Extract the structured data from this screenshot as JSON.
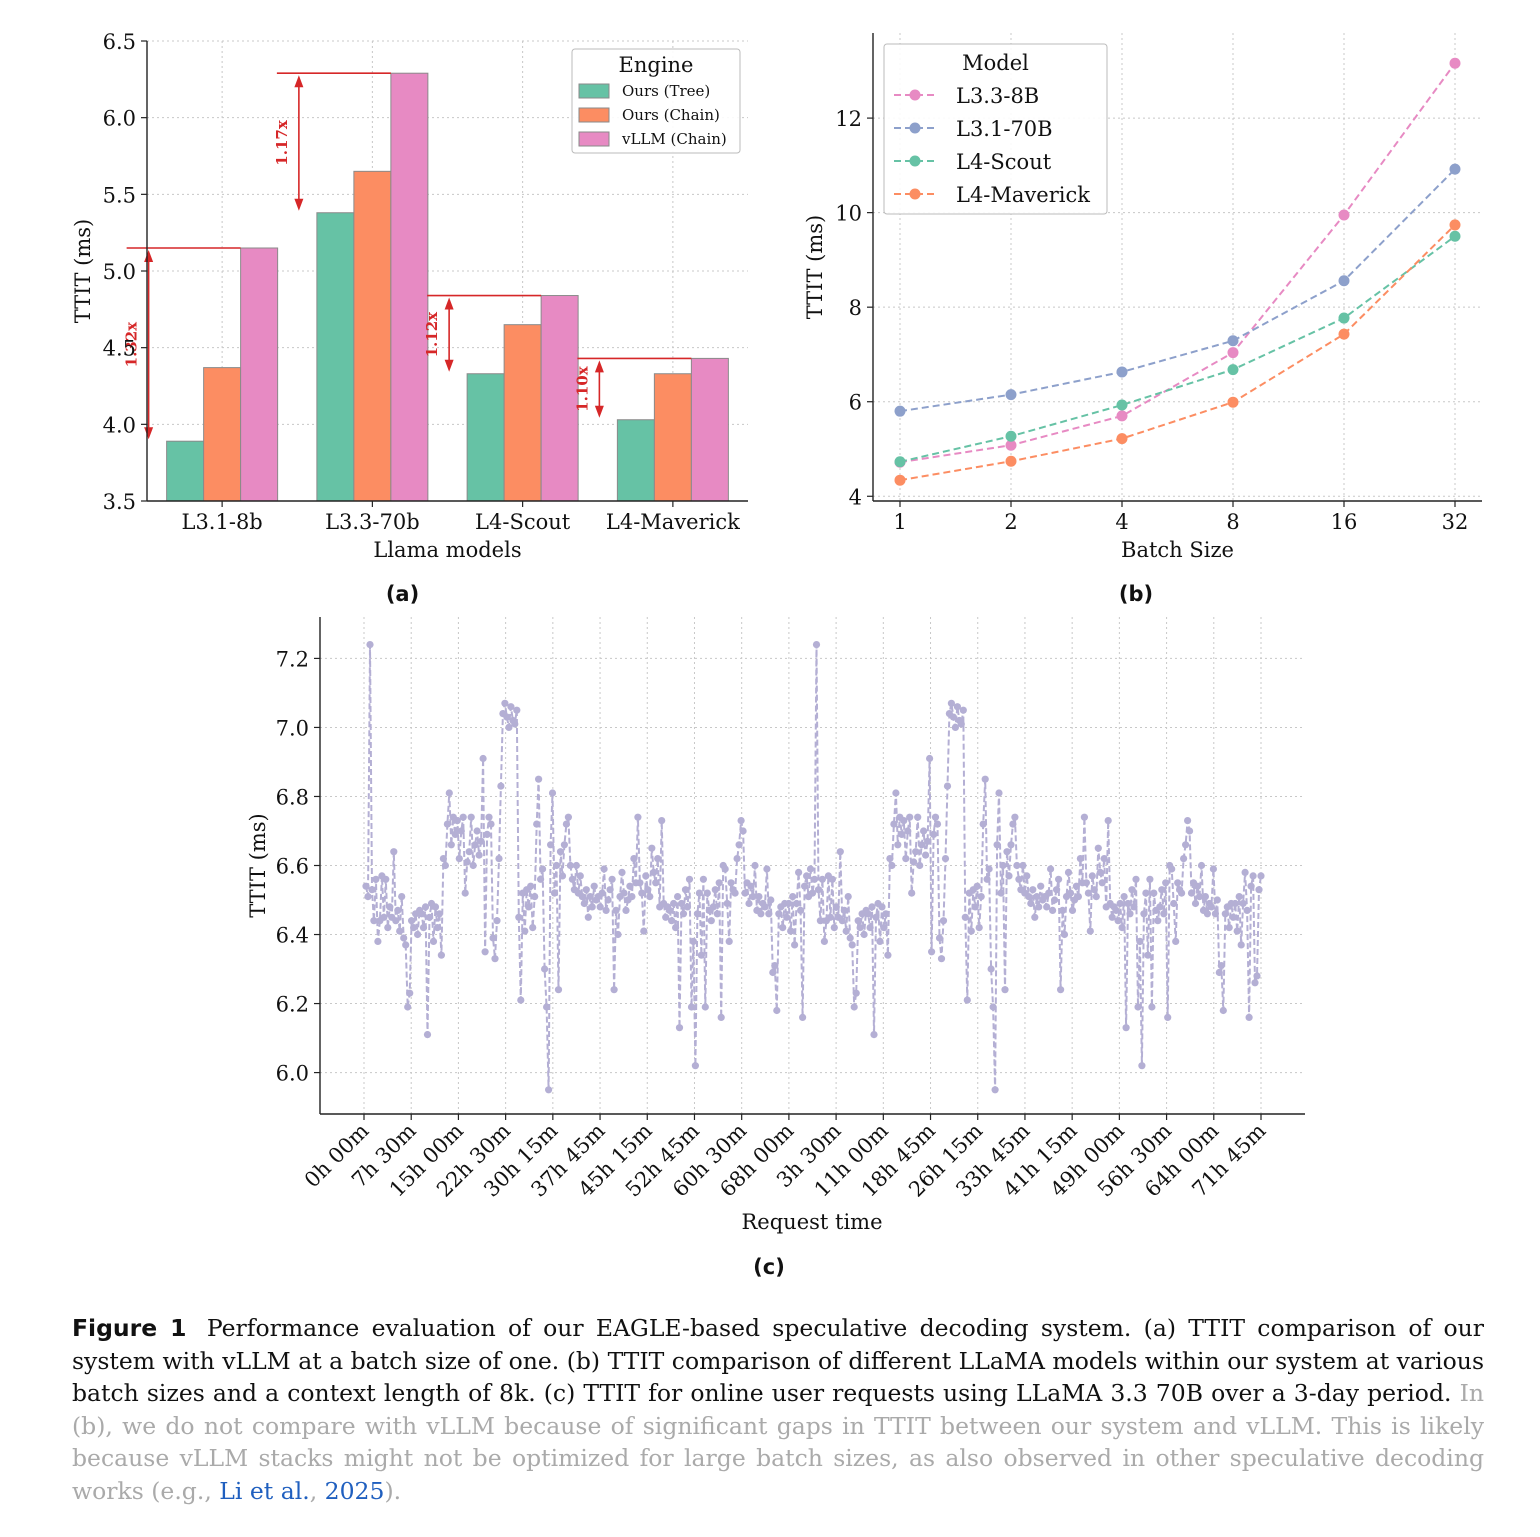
{
  "chart_data": [
    {
      "id": "a",
      "type": "bar",
      "sublabel": "(a)",
      "title": "",
      "xlabel": "Llama models",
      "ylabel": "TTIT (ms)",
      "ylim": [
        3.5,
        6.5
      ],
      "yticks": [
        "3.5",
        "4.0",
        "4.5",
        "5.0",
        "5.5",
        "6.0",
        "6.5"
      ],
      "grid": true,
      "categories": [
        "L3.1-8b",
        "L3.3-70b",
        "L4-Scout",
        "L4-Maverick"
      ],
      "legend": {
        "title": "Engine",
        "position": "top-right"
      },
      "series": [
        {
          "name": "Ours (Tree)",
          "color": "#66c2a5",
          "values": [
            3.89,
            5.38,
            4.33,
            4.03
          ]
        },
        {
          "name": "Ours (Chain)",
          "color": "#fc8d62",
          "values": [
            4.37,
            5.65,
            4.65,
            4.33
          ]
        },
        {
          "name": "vLLM (Chain)",
          "color": "#e78ac3",
          "values": [
            5.15,
            6.29,
            4.84,
            4.43
          ]
        }
      ],
      "annotations": [
        {
          "category": "L3.1-8b",
          "label": "1.32x"
        },
        {
          "category": "L3.3-70b",
          "label": "1.17x"
        },
        {
          "category": "L4-Scout",
          "label": "1.12x"
        },
        {
          "category": "L4-Maverick",
          "label": "1.10x"
        }
      ],
      "annotation_color": "#d62728"
    },
    {
      "id": "b",
      "type": "line",
      "sublabel": "(b)",
      "title": "",
      "xlabel": "Batch Size",
      "ylabel": "TTIT (ms)",
      "ylim": [
        3.9,
        13.8
      ],
      "yticks": [
        "4",
        "6",
        "8",
        "10",
        "12"
      ],
      "grid": true,
      "x": [
        "1",
        "2",
        "4",
        "8",
        "16",
        "32"
      ],
      "legend": {
        "title": "Model",
        "position": "top-left"
      },
      "series": [
        {
          "name": "L3.3-8B",
          "color": "#e78ac3",
          "values": [
            4.72,
            5.08,
            5.7,
            7.04,
            9.95,
            13.16
          ]
        },
        {
          "name": "L3.1-70B",
          "color": "#8da0cb",
          "values": [
            5.8,
            6.15,
            6.63,
            7.29,
            8.56,
            10.92
          ]
        },
        {
          "name": "L4-Scout",
          "color": "#66c2a5",
          "values": [
            4.73,
            5.27,
            5.93,
            6.68,
            7.77,
            9.5
          ]
        },
        {
          "name": "L4-Maverick",
          "color": "#fc8d62",
          "values": [
            4.34,
            4.74,
            5.22,
            5.99,
            7.43,
            9.74
          ]
        }
      ]
    },
    {
      "id": "c",
      "type": "line",
      "sublabel": "(c)",
      "title": "",
      "xlabel": "Request time",
      "ylabel": "TTIT (ms)",
      "ylim": [
        5.88,
        7.32
      ],
      "yticks": [
        "6.0",
        "6.2",
        "6.4",
        "6.6",
        "6.8",
        "7.0",
        "7.2"
      ],
      "grid": true,
      "xticks": [
        "0h 00m",
        "7h 30m",
        "15h 00m",
        "22h 30m",
        "30h 15m",
        "37h 45m",
        "45h 15m",
        "52h 45m",
        "60h 30m",
        "68h 00m",
        "3h 30m",
        "11h 00m",
        "18h 45m",
        "26h 15m",
        "33h 45m",
        "41h 15m",
        "49h 00m",
        "56h 30m",
        "64h 00m",
        "71h 45m"
      ],
      "series": [
        {
          "name": "",
          "color": "#b4afd4",
          "values": [
            6.54,
            6.51,
            7.24,
            6.53,
            6.44,
            6.56,
            6.38,
            6.44,
            6.57,
            6.45,
            6.56,
            6.42,
            6.48,
            6.45,
            6.64,
            6.44,
            6.47,
            6.41,
            6.51,
            6.39,
            6.37,
            6.19,
            6.23,
            6.44,
            6.42,
            6.46,
            6.4,
            6.47,
            6.46,
            6.42,
            6.48,
            6.11,
            6.45,
            6.49,
            6.38,
            6.48,
            6.42,
            6.46,
            6.34,
            6.62,
            6.6,
            6.72,
            6.81,
            6.66,
            6.74,
            6.69,
            6.73,
            6.62,
            6.7,
            6.74,
            6.52,
            6.61,
            6.64,
            6.74,
            6.6,
            6.66,
            6.7,
            6.63,
            6.67,
            6.91,
            6.35,
            6.69,
            6.74,
            6.72,
            6.39,
            6.33,
            6.44,
            6.62,
            6.83,
            7.04,
            7.07,
            7.03,
            7.0,
            7.06,
            7.02,
            7.01,
            7.05,
            6.45,
            6.21,
            6.52,
            6.41,
            6.53,
            6.48,
            6.54,
            6.42,
            6.51,
            6.72,
            6.85,
            6.56,
            6.59,
            6.3,
            6.19,
            5.95,
            6.66,
            6.81,
            6.52,
            6.6,
            6.24,
            6.64,
            6.57,
            6.66,
            6.72,
            6.74,
            6.6,
            6.56,
            6.53,
            6.6,
            6.52,
            6.57,
            6.51,
            6.49,
            6.53,
            6.45,
            6.51,
            6.48,
            6.54,
            6.5,
            6.51,
            6.48,
            6.52,
            6.59,
            6.47,
            6.5,
            6.53,
            6.56,
            6.24,
            6.47,
            6.4,
            6.51,
            6.58,
            6.52,
            6.47,
            6.5,
            6.54,
            6.51,
            6.62,
            6.55,
            6.74,
            6.55,
            6.52,
            6.41,
            6.57,
            6.53,
            6.51,
            6.65,
            6.58,
            6.55,
            6.62,
            6.48,
            6.73,
            6.49,
            6.45,
            6.48,
            6.47,
            6.44,
            6.49,
            6.42,
            6.51,
            6.13,
            6.49,
            6.46,
            6.53,
            6.48,
            6.56,
            6.19,
            6.38,
            6.02,
            6.46,
            6.52,
            6.34,
            6.56,
            6.19,
            6.52,
            6.47,
            6.44,
            6.48,
            6.53,
            6.46,
            6.55,
            6.16,
            6.6,
            6.59,
            6.49,
            6.38,
            6.55,
            6.53,
            6.52,
            6.62,
            6.66,
            6.73,
            6.7,
            6.52,
            6.55,
            6.49,
            6.54,
            6.51,
            6.6,
            6.47,
            6.51,
            6.46,
            6.49,
            6.48,
            6.59,
            6.46,
            6.5,
            6.29,
            6.31,
            6.18,
            6.46,
            6.48,
            6.42,
            6.49,
            6.45,
            6.49,
            6.41,
            6.51,
            6.37,
            6.49,
            6.58,
            6.47,
            6.16,
            6.54,
            6.57,
            6.51,
            6.59,
            6.52,
            6.56,
            7.24,
            6.53,
            6.44,
            6.56,
            6.38,
            6.44,
            6.57,
            6.45,
            6.56,
            6.42,
            6.48,
            6.45,
            6.64,
            6.44,
            6.47,
            6.41,
            6.51,
            6.39,
            6.37,
            6.19,
            6.23,
            6.44,
            6.42,
            6.46,
            6.4,
            6.47,
            6.46,
            6.42,
            6.48,
            6.11,
            6.45,
            6.49,
            6.38,
            6.48,
            6.42,
            6.46,
            6.34,
            6.62,
            6.6,
            6.72,
            6.81,
            6.66,
            6.74,
            6.69,
            6.73,
            6.62,
            6.7,
            6.74,
            6.52,
            6.61,
            6.64,
            6.74,
            6.6,
            6.66,
            6.7,
            6.63,
            6.67,
            6.91,
            6.35,
            6.69,
            6.74,
            6.72,
            6.39,
            6.33,
            6.44,
            6.62,
            6.83,
            7.04,
            7.07,
            7.03,
            7.0,
            7.06,
            7.02,
            7.01,
            7.05,
            6.45,
            6.21,
            6.52,
            6.41,
            6.53,
            6.48,
            6.54,
            6.42,
            6.51,
            6.72,
            6.85,
            6.56,
            6.59,
            6.3,
            6.19,
            5.95,
            6.66,
            6.81,
            6.52,
            6.6,
            6.24,
            6.64,
            6.57,
            6.66,
            6.72,
            6.74,
            6.6,
            6.56,
            6.53,
            6.6,
            6.52,
            6.57,
            6.51,
            6.49,
            6.53,
            6.45,
            6.51,
            6.48,
            6.54,
            6.5,
            6.51,
            6.48,
            6.52,
            6.59,
            6.47,
            6.5,
            6.53,
            6.56,
            6.24,
            6.47,
            6.4,
            6.51,
            6.58,
            6.52,
            6.47,
            6.5,
            6.54,
            6.51,
            6.62,
            6.55,
            6.74,
            6.55,
            6.52,
            6.41,
            6.57,
            6.53,
            6.51,
            6.65,
            6.58,
            6.55,
            6.62,
            6.48,
            6.73,
            6.49,
            6.45,
            6.48,
            6.47,
            6.44,
            6.49,
            6.42,
            6.51,
            6.13,
            6.49,
            6.46,
            6.53,
            6.48,
            6.56,
            6.19,
            6.38,
            6.02,
            6.46,
            6.52,
            6.34,
            6.56,
            6.19,
            6.52,
            6.47,
            6.44,
            6.48,
            6.53,
            6.46,
            6.55,
            6.16,
            6.6,
            6.59,
            6.49,
            6.38,
            6.55,
            6.53,
            6.52,
            6.62,
            6.66,
            6.73,
            6.7,
            6.52,
            6.55,
            6.49,
            6.54,
            6.51,
            6.6,
            6.47,
            6.51,
            6.46,
            6.49,
            6.48,
            6.59,
            6.46,
            6.5,
            6.29,
            6.31,
            6.18,
            6.46,
            6.48,
            6.42,
            6.49,
            6.45,
            6.49,
            6.41,
            6.51,
            6.37,
            6.49,
            6.58,
            6.47,
            6.16,
            6.54,
            6.57,
            6.26,
            6.28,
            6.53,
            6.57
          ]
        }
      ]
    }
  ],
  "caption": {
    "figure_label": "Figure 1",
    "main_text": "Performance evaluation of our EAGLE-based speculative decoding system. (a) TTIT comparison of our system with vLLM at a batch size of one. (b) TTIT comparison of different LLaMA models within our system at various batch sizes and a context length of 8k. (c) TTIT for online user requests using LLaMA 3.3 70B over a 3-day period.",
    "muted_text": "In (b), we do not compare with vLLM because of significant gaps in TTIT between our system and vLLM. This is likely because vLLM stacks might not be optimized for large batch sizes, as also observed in other speculative decoding works (e.g.,",
    "citation_author": "Li et al.",
    "citation_sep": ", ",
    "citation_year": "2025",
    "muted_end": ")."
  }
}
